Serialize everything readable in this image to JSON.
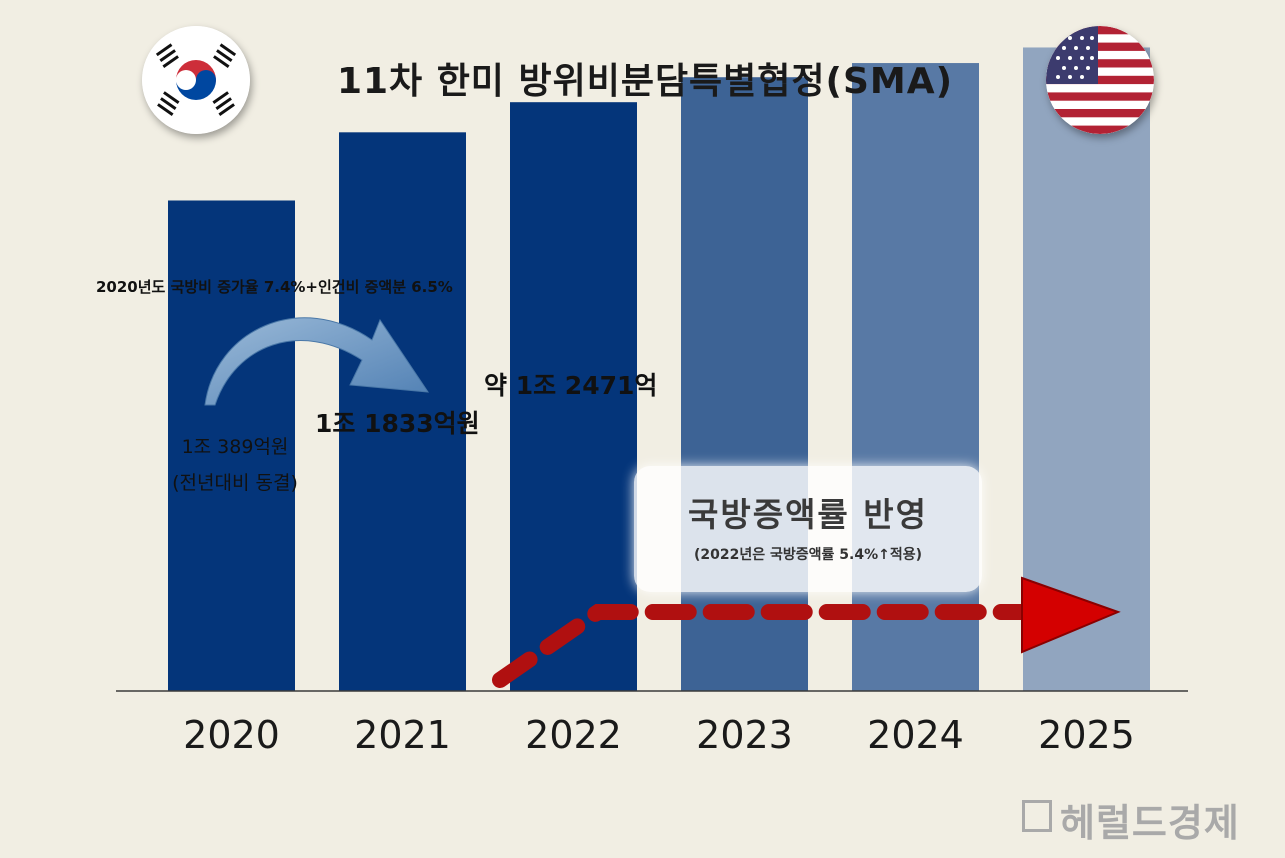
{
  "title": "11차 한미 방위비분담특별협정(SMA)",
  "annotation_top": "2020년도 국방비 증가율 7.4%+인건비 증액분 6.5%",
  "labels": {
    "y2020_line1": "1조 389억원",
    "y2020_line2": "(전년대비 동결)",
    "y2021": "1조 1833억원",
    "y2022": "약 1조 2471억"
  },
  "callout": {
    "title": "국방증액률 반영",
    "subtitle": "(2022년은 국방증액률 5.4%↑적용)"
  },
  "watermark": "헤럴드경제",
  "icons": [
    "korea-flag-icon",
    "usa-flag-icon",
    "curved-arrow-icon",
    "dashed-trend-arrow-icon",
    "herald-logo-icon"
  ],
  "colors": {
    "background": "#f1eee3",
    "bar_dark": "#04357a",
    "bar_2023": "#3d6395",
    "bar_2024": "#5879a5",
    "bar_2025": "#91a5bf",
    "trend_arrow": "#c00000",
    "curved_arrow": "#5b8bbd"
  },
  "chart_data": {
    "type": "bar",
    "categories": [
      "2020",
      "2021",
      "2022",
      "2023",
      "2024",
      "2025"
    ],
    "values": [
      10389,
      11833,
      12471,
      13000,
      13300,
      13630
    ],
    "value_note": "2023–2025 values are not printed; estimated from bar heights",
    "ylim": [
      0,
      14000
    ],
    "title": "11차 한미 방위비분담특별협정(SMA)",
    "xlabel": "",
    "ylabel": "",
    "grid": false
  }
}
